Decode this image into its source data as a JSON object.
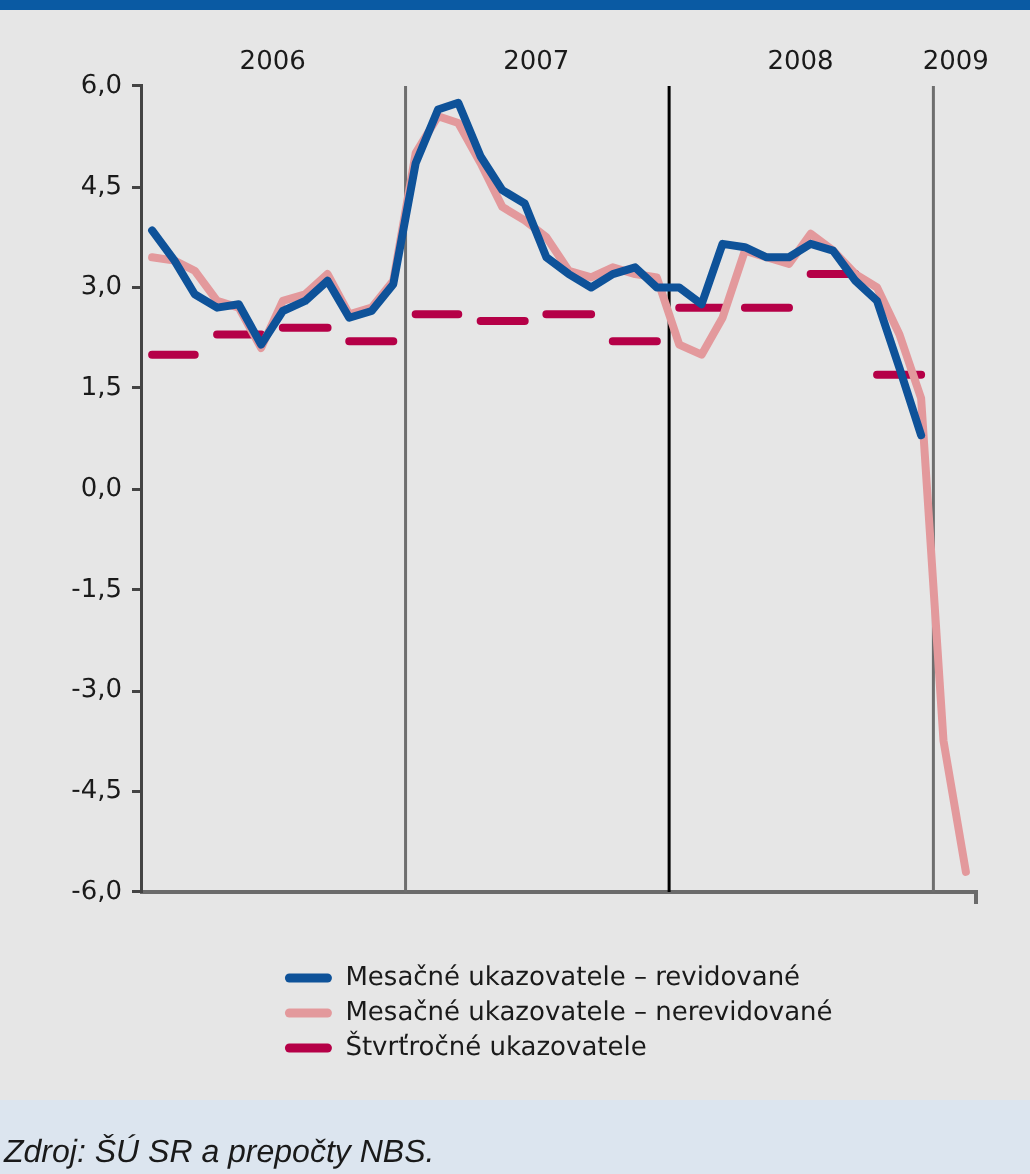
{
  "chart_data": {
    "type": "line",
    "x": [
      "2006-01-15",
      "2006-02-15",
      "2006-03-15",
      "2006-04-15",
      "2006-05-15",
      "2006-06-15",
      "2006-07-15",
      "2006-08-15",
      "2006-09-15",
      "2006-10-15",
      "2006-11-15",
      "2006-12-15",
      "2007-01-15",
      "2007-02-15",
      "2007-03-15",
      "2007-04-15",
      "2007-05-15",
      "2007-06-15",
      "2007-07-15",
      "2007-08-15",
      "2007-09-15",
      "2007-10-15",
      "2007-11-15",
      "2007-12-15",
      "2008-01-15",
      "2008-02-15",
      "2008-03-15",
      "2008-04-15",
      "2008-05-15",
      "2008-06-15",
      "2008-07-15",
      "2008-08-15",
      "2008-09-15",
      "2008-10-15",
      "2008-11-15",
      "2008-12-15",
      "2009-01-15",
      "2009-02-15"
    ],
    "series": [
      {
        "name": "Mesačné ukazovatele – revidované",
        "color": "#0e5299",
        "values": [
          3.85,
          3.4,
          2.9,
          2.7,
          2.75,
          2.15,
          2.65,
          2.8,
          3.1,
          2.55,
          2.65,
          3.05,
          4.85,
          5.65,
          5.75,
          4.95,
          4.45,
          4.25,
          3.45,
          3.2,
          3.0,
          3.2,
          3.3,
          3.0,
          3.0,
          2.75,
          3.65,
          3.6,
          3.45,
          3.45,
          3.65,
          3.55,
          3.1,
          2.8,
          1.8,
          0.8,
          null,
          null
        ]
      },
      {
        "name": "Mesačné ukazovatele – nerevidované",
        "color": "#e3999c",
        "values": [
          3.45,
          3.4,
          3.25,
          2.8,
          2.7,
          2.1,
          2.8,
          2.9,
          3.2,
          2.6,
          2.7,
          3.1,
          5.0,
          5.55,
          5.45,
          4.85,
          4.2,
          4.0,
          3.75,
          3.25,
          3.15,
          3.3,
          3.2,
          3.15,
          2.15,
          2.0,
          2.55,
          3.55,
          3.45,
          3.35,
          3.8,
          3.55,
          3.2,
          3.0,
          2.3,
          1.35,
          -3.75,
          -5.7
        ]
      },
      {
        "name": "Štvrťročné ukazovatele",
        "color": "#b50047",
        "x": [
          "2006-01-15",
          "2006-03-15",
          "2006-04-01",
          "2006-04-15",
          "2006-06-15",
          "2006-07-01",
          "2006-07-15",
          "2006-09-15",
          "2006-10-01",
          "2006-10-15",
          "2006-12-15",
          "2007-01-01",
          "2007-01-15",
          "2007-03-15",
          "2007-04-01",
          "2007-04-15",
          "2007-06-15",
          "2007-07-01",
          "2007-07-15",
          "2007-09-15",
          "2007-10-01",
          "2007-10-15",
          "2007-12-15",
          "2008-01-01",
          "2008-01-15",
          "2008-03-15",
          "2008-04-01",
          "2008-04-15",
          "2008-06-15",
          "2008-07-01",
          "2008-07-15",
          "2008-09-15",
          "2008-10-01",
          "2008-10-15",
          "2008-12-15"
        ],
        "values": [
          2.0,
          2.0,
          null,
          2.3,
          2.3,
          null,
          2.4,
          2.4,
          null,
          2.2,
          2.2,
          null,
          2.6,
          2.6,
          null,
          2.5,
          2.5,
          null,
          2.6,
          2.6,
          null,
          2.2,
          2.2,
          null,
          2.7,
          2.7,
          null,
          2.7,
          2.7,
          null,
          3.2,
          3.2,
          null,
          1.7,
          1.7
        ]
      }
    ],
    "xlim": [
      "2006-01-01",
      "2009-03-01"
    ],
    "xticks": [
      {
        "value": "2006-07-01",
        "label": "2006"
      },
      {
        "value": "2007-07-01",
        "label": "2007"
      },
      {
        "value": "2008-07-01",
        "label": "2008"
      },
      {
        "value": "2009-02-01",
        "label": "2009"
      },
      {
        "value": "2009-03-01",
        "label": null
      }
    ],
    "ylim": [
      -6,
      6
    ],
    "yticks": [
      {
        "value": -6,
        "label": "-6,0"
      },
      {
        "value": -4.5,
        "label": "-4,5"
      },
      {
        "value": -3,
        "label": "-3,0"
      },
      {
        "value": -1.5,
        "label": "-1,5"
      },
      {
        "value": 0,
        "label": "0,0"
      },
      {
        "value": 1.5,
        "label": "1,5"
      },
      {
        "value": 3,
        "label": "3,0"
      },
      {
        "value": 4.5,
        "label": "4,5"
      },
      {
        "value": 6,
        "label": "6,0"
      }
    ],
    "ref_lines": [
      {
        "axis": "x",
        "value": "2007-01-01",
        "color": "#6e6e6e"
      },
      {
        "axis": "x",
        "value": "2008-01-01",
        "color": "#000000"
      },
      {
        "axis": "x",
        "value": "2009-01-01",
        "color": "#6e6e6e"
      }
    ],
    "legend": "bottom",
    "annotations": [
      "Zdroj: ŠÚ SR a prepočty NBS."
    ]
  }
}
